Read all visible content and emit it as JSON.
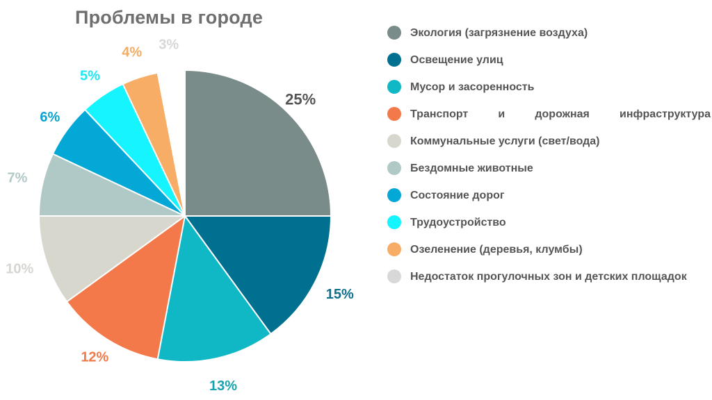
{
  "chart_data": {
    "type": "pie",
    "title": "Проблемы в городе",
    "start": "12 o'clock, clockwise",
    "label_format": "{v}%",
    "slices": [
      {
        "label": "Экология (загрязнение воздуха)",
        "value": 25,
        "color": "#7a8c89",
        "label_color": "#555555"
      },
      {
        "label": "Освещение улиц",
        "value": 15,
        "color": "#007090",
        "label_color": "#0c6f8c"
      },
      {
        "label": "Мусор и засоренность",
        "value": 13,
        "color": "#10b8c6",
        "label_color": "#14a3b0"
      },
      {
        "label": "Транспорт и дорожная инфраструктура",
        "value": 12,
        "color": "#f4794a",
        "label_color": "#ef7a4a"
      },
      {
        "label": "Коммунальные услуги (свет/вода)",
        "value": 10,
        "color": "#d8d7ce",
        "label_color": "#d6d6d1"
      },
      {
        "label": "Бездомные животные",
        "value": 7,
        "color": "#b0c9c7",
        "label_color": "#b3c9c7"
      },
      {
        "label": "Состояние дорог",
        "value": 6,
        "color": "#03a8d6",
        "label_color": "#0ba4d0"
      },
      {
        "label": "Трудоустройство",
        "value": 5,
        "color": "#16f4ff",
        "label_color": "#23e8f6"
      },
      {
        "label": "Озеленение (деревья, клумбы)",
        "value": 4,
        "color": "#f7ad66",
        "label_color": "#f2ad66"
      },
      {
        "label": "Недостаток прогулочных зон и детских площадок",
        "value": 3,
        "color": "#ffffff",
        "label_color": "#d7d7d7"
      }
    ],
    "legend": {
      "position": "right",
      "swatch_colors": [
        "#7a8c89",
        "#007090",
        "#10b8c6",
        "#f4794a",
        "#d8d7ce",
        "#b0c9c7",
        "#03a8d6",
        "#16f4ff",
        "#f7ad66",
        "#d8d8d8"
      ]
    }
  }
}
